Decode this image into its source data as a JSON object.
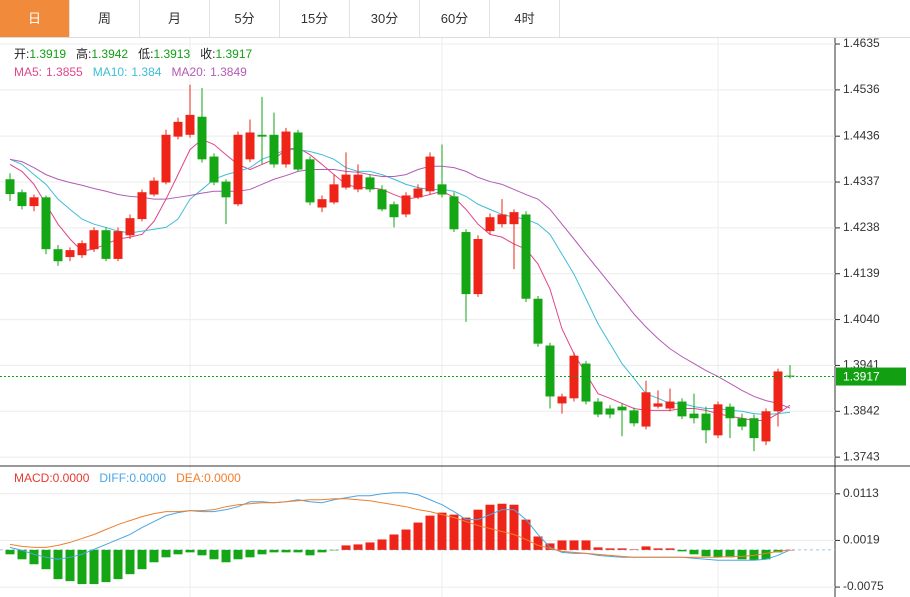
{
  "tabs": [
    {
      "label": "日",
      "active": true
    },
    {
      "label": "周",
      "active": false
    },
    {
      "label": "月",
      "active": false
    },
    {
      "label": "5分",
      "active": false
    },
    {
      "label": "15分",
      "active": false
    },
    {
      "label": "30分",
      "active": false
    },
    {
      "label": "60分",
      "active": false
    },
    {
      "label": "4时",
      "active": false
    }
  ],
  "chart_data": [
    {
      "type": "candlestick",
      "info": [
        {
          "label": "开:",
          "value": 1.3919
        },
        {
          "label": "高:",
          "value": 1.3942
        },
        {
          "label": "低:",
          "value": 1.3913
        },
        {
          "label": "收:",
          "value": 1.3917
        }
      ],
      "info_color": "#12a012",
      "up_color": "#ee2418",
      "down_color": "#14a614",
      "candles": {
        "open": [
          1.4343,
          1.4315,
          1.4285,
          1.4304,
          1.4192,
          1.4175,
          1.4179,
          1.4192,
          1.4233,
          1.4171,
          1.4222,
          1.4257,
          1.431,
          1.4336,
          1.4435,
          1.4439,
          1.4478,
          1.4392,
          1.4338,
          1.4289,
          1.4386,
          1.4439,
          1.4439,
          1.4375,
          1.4444,
          1.4386,
          1.4282,
          1.4293,
          1.4325,
          1.4321,
          1.4347,
          1.4321,
          1.4289,
          1.4267,
          1.4304,
          1.4317,
          1.4332,
          1.4306,
          1.4229,
          1.4095,
          1.4231,
          1.4246,
          1.4246,
          1.4267,
          1.4085,
          1.3984,
          1.3859,
          1.387,
          1.3945,
          1.3863,
          1.3848,
          1.3852,
          1.3844,
          1.3809,
          1.3852,
          1.3848,
          1.3863,
          1.3837,
          1.3837,
          1.379,
          1.3852,
          1.3827,
          1.3827,
          1.3777,
          1.3842,
          1.3919
        ],
        "high": [
          1.4356,
          1.4321,
          1.431,
          1.4308,
          1.4201,
          1.4196,
          1.4211,
          1.4239,
          1.4239,
          1.4239,
          1.4267,
          1.4321,
          1.4347,
          1.445,
          1.4476,
          1.4547,
          1.454,
          1.4399,
          1.4343,
          1.4446,
          1.4472,
          1.4521,
          1.4487,
          1.4454,
          1.445,
          1.4392,
          1.4308,
          1.4353,
          1.4401,
          1.4375,
          1.4353,
          1.433,
          1.4295,
          1.4315,
          1.4332,
          1.4401,
          1.4418,
          1.4315,
          1.4235,
          1.4222,
          1.4269,
          1.43,
          1.4278,
          1.4274,
          1.4091,
          1.399,
          1.388,
          1.3969,
          1.3951,
          1.387,
          1.3855,
          1.3859,
          1.385,
          1.3908,
          1.3887,
          1.3891,
          1.387,
          1.388,
          1.3852,
          1.3863,
          1.3859,
          1.3837,
          1.3835,
          1.3848,
          1.3934,
          1.3942
        ],
        "low": [
          1.4296,
          1.4278,
          1.4274,
          1.4181,
          1.4156,
          1.4166,
          1.4173,
          1.4186,
          1.4166,
          1.4166,
          1.4214,
          1.4252,
          1.4306,
          1.4332,
          1.4429,
          1.4433,
          1.4379,
          1.433,
          1.4246,
          1.4285,
          1.438,
          1.4375,
          1.4368,
          1.4368,
          1.436,
          1.4287,
          1.4272,
          1.4289,
          1.4321,
          1.4315,
          1.4315,
          1.4274,
          1.4239,
          1.4261,
          1.43,
          1.431,
          1.4304,
          1.4229,
          1.4035,
          1.4089,
          1.4224,
          1.4239,
          1.4149,
          1.4078,
          1.3981,
          1.3848,
          1.3837,
          1.3863,
          1.3857,
          1.3829,
          1.3827,
          1.3788,
          1.3809,
          1.3803,
          1.3848,
          1.3842,
          1.3825,
          1.3816,
          1.3773,
          1.3784,
          1.3784,
          1.3801,
          1.3756,
          1.3769,
          1.3809,
          1.3913
        ],
        "close": [
          1.4311,
          1.4285,
          1.4304,
          1.4192,
          1.4166,
          1.419,
          1.4205,
          1.4233,
          1.4171,
          1.4231,
          1.4259,
          1.4315,
          1.434,
          1.4439,
          1.4467,
          1.4482,
          1.4386,
          1.4336,
          1.4304,
          1.4439,
          1.4444,
          1.4435,
          1.4375,
          1.4446,
          1.4364,
          1.4293,
          1.43,
          1.4332,
          1.4353,
          1.4353,
          1.4321,
          1.4278,
          1.4261,
          1.4308,
          1.4323,
          1.4392,
          1.431,
          1.4235,
          1.4095,
          1.4214,
          1.4261,
          1.4267,
          1.4272,
          1.4085,
          1.3988,
          1.3874,
          1.3874,
          1.3962,
          1.3863,
          1.3835,
          1.3835,
          1.3844,
          1.3816,
          1.3883,
          1.3859,
          1.3863,
          1.3831,
          1.3827,
          1.3801,
          1.3857,
          1.3827,
          1.3809,
          1.3784,
          1.3842,
          1.3928,
          1.3917
        ]
      },
      "series": [
        {
          "name": "MA5:",
          "color": "#e0468a",
          "values": [
            1.4375,
            1.436,
            1.4332,
            1.4289,
            1.4246,
            1.4214,
            1.4188,
            1.4192,
            1.4203,
            1.4214,
            1.4218,
            1.4224,
            1.4252,
            1.43,
            1.4353,
            1.4407,
            1.4429,
            1.4418,
            1.4396,
            1.4375,
            1.4364,
            1.4375,
            1.4386,
            1.4407,
            1.4411,
            1.4396,
            1.4375,
            1.4353,
            1.4332,
            1.4325,
            1.4325,
            1.4321,
            1.431,
            1.43,
            1.4304,
            1.431,
            1.4317,
            1.4304,
            1.4278,
            1.4246,
            1.4224,
            1.4218,
            1.4203,
            1.4192,
            1.416,
            1.4106,
            1.402,
            1.3966,
            1.3923,
            1.388,
            1.387,
            1.3859,
            1.3848,
            1.3844,
            1.3844,
            1.3844,
            1.3848,
            1.3848,
            1.3844,
            1.3837,
            1.3831,
            1.3827,
            1.3822,
            1.3822,
            1.3837,
            1.3855
          ]
        },
        {
          "name": "MA10:",
          "color": "#3ebdd6",
          "values": [
            1.4386,
            1.4375,
            1.4353,
            1.4332,
            1.43,
            1.4278,
            1.4257,
            1.4246,
            1.4239,
            1.4231,
            1.4227,
            1.4231,
            1.4235,
            1.4239,
            1.4257,
            1.43,
            1.4321,
            1.4343,
            1.4353,
            1.436,
            1.4368,
            1.4386,
            1.4396,
            1.4407,
            1.4407,
            1.4403,
            1.4396,
            1.4386,
            1.4368,
            1.436,
            1.436,
            1.4353,
            1.4343,
            1.4332,
            1.4325,
            1.4321,
            1.4321,
            1.4317,
            1.4306,
            1.4289,
            1.4278,
            1.4267,
            1.4261,
            1.4257,
            1.4246,
            1.4224,
            1.4181,
            1.4138,
            1.4085,
            1.4031,
            1.3988,
            1.3945,
            1.3913,
            1.388,
            1.387,
            1.3859,
            1.3859,
            1.3852,
            1.3848,
            1.3848,
            1.3844,
            1.3842,
            1.3837,
            1.3835,
            1.3837,
            1.384
          ]
        },
        {
          "name": "MA20:",
          "color": "#b45ab6",
          "values": [
            1.4386,
            1.4381,
            1.4368,
            1.4353,
            1.4343,
            1.4336,
            1.433,
            1.4323,
            1.4317,
            1.431,
            1.4306,
            1.4304,
            1.43,
            1.43,
            1.4304,
            1.4308,
            1.4313,
            1.4317,
            1.4317,
            1.4317,
            1.4321,
            1.4332,
            1.4343,
            1.4351,
            1.436,
            1.4364,
            1.4364,
            1.4364,
            1.436,
            1.4358,
            1.4353,
            1.4349,
            1.4349,
            1.4353,
            1.4364,
            1.4371,
            1.4371,
            1.4368,
            1.436,
            1.4347,
            1.4338,
            1.4332,
            1.4321,
            1.431,
            1.43,
            1.4278,
            1.4246,
            1.4214,
            1.4181,
            1.4149,
            1.4117,
            1.4085,
            1.4052,
            1.4024,
            1.3999,
            1.3977,
            1.396,
            1.3945,
            1.393,
            1.3917,
            1.3902,
            1.3887,
            1.3874,
            1.3865,
            1.3859,
            1.3849
          ]
        }
      ],
      "current_price": 1.3917,
      "current_color": "#12a012",
      "ylim": [
        1.3726,
        1.4648
      ],
      "yticks": [
        1.4635,
        1.4536,
        1.4436,
        1.4337,
        1.4238,
        1.4139,
        {
          "value": 1.404,
          "label": "1.4040"
        },
        1.3941,
        1.3842,
        1.3743
      ],
      "grid": true
    },
    {
      "type": "macd",
      "histogram": {
        "name": "MACD:",
        "color": "#e8392e",
        "last_label": "0.0000",
        "values": [
          -0.0009,
          -0.0019,
          -0.0029,
          -0.0039,
          -0.0059,
          -0.0063,
          -0.0069,
          -0.0069,
          -0.0065,
          -0.0059,
          -0.0049,
          -0.0039,
          -0.0025,
          -0.0015,
          -0.0009,
          -0.0005,
          -0.0011,
          -0.0019,
          -0.0025,
          -0.0019,
          -0.0015,
          -0.0009,
          -0.0005,
          -0.0005,
          -0.0005,
          -0.0011,
          -0.0005,
          -0.0001,
          0.0009,
          0.0011,
          0.0015,
          0.0021,
          0.0031,
          0.0041,
          0.0055,
          0.0069,
          0.0075,
          0.0071,
          0.0065,
          0.0081,
          0.0091,
          0.0093,
          0.0091,
          0.0061,
          0.0027,
          0.0013,
          0.0019,
          0.0019,
          0.0019,
          0.0005,
          0.0003,
          0.0003,
          0.0001,
          0.0007,
          0.0003,
          0.0003,
          -0.0003,
          -0.0009,
          -0.0013,
          -0.0015,
          -0.0015,
          -0.0019,
          -0.0021,
          -0.0019,
          -0.0005,
          0
        ]
      },
      "up_color": "#ee2418",
      "down_color": "#14a614",
      "series": [
        {
          "name": "DIFF:",
          "color": "#4aa6e6",
          "last_label": "0.0000",
          "values": [
            0.0005,
            -0.0001,
            -0.0009,
            -0.0015,
            -0.0019,
            -0.0015,
            -0.0009,
            0.0001,
            0.0011,
            0.0021,
            0.0031,
            0.0045,
            0.0057,
            0.0069,
            0.0075,
            0.0079,
            0.0077,
            0.0077,
            0.0081,
            0.0087,
            0.0097,
            0.0097,
            0.0095,
            0.0097,
            0.0101,
            0.0097,
            0.0095,
            0.0101,
            0.0105,
            0.0109,
            0.0109,
            0.0113,
            0.0115,
            0.0115,
            0.0111,
            0.0101,
            0.0091,
            0.0077,
            0.0061,
            0.0061,
            0.0071,
            0.0081,
            0.0081,
            0.0061,
            0.0031,
            0.0005,
            -0.0005,
            -0.0007,
            -0.0007,
            -0.0011,
            -0.0013,
            -0.0015,
            -0.0015,
            -0.0015,
            -0.0015,
            -0.0015,
            -0.0015,
            -0.0017,
            -0.0019,
            -0.0021,
            -0.0021,
            -0.0021,
            -0.0021,
            -0.0019,
            -0.0011,
            0
          ]
        },
        {
          "name": "DEA:",
          "color": "#f07f2c",
          "last_label": "0.0000",
          "values": [
            0.0011,
            0.0007,
            0.0005,
            0.0005,
            0.0009,
            0.0015,
            0.0023,
            0.0031,
            0.0041,
            0.0051,
            0.0059,
            0.0067,
            0.0073,
            0.0077,
            0.0077,
            0.0079,
            0.0079,
            0.0081,
            0.0087,
            0.0091,
            0.0093,
            0.0095,
            0.0095,
            0.0097,
            0.0099,
            0.0101,
            0.0101,
            0.0103,
            0.0103,
            0.0101,
            0.0099,
            0.0095,
            0.0091,
            0.0087,
            0.0081,
            0.0077,
            0.0071,
            0.0065,
            0.0057,
            0.0049,
            0.0043,
            0.0037,
            0.0031,
            0.0021,
            0.0009,
            0.0003,
            -0.0003,
            -0.0005,
            -0.0007,
            -0.0009,
            -0.0011,
            -0.0013,
            -0.0015,
            -0.0015,
            -0.0015,
            -0.0015,
            -0.0015,
            -0.0015,
            -0.0015,
            -0.0015,
            -0.0013,
            -0.0013,
            -0.0011,
            -0.0007,
            -0.0003,
            0
          ]
        }
      ],
      "ylim": [
        -0.0095,
        0.0165
      ],
      "yticks": [
        0.0113,
        0.0019,
        -0.0075
      ],
      "grid": true
    }
  ]
}
